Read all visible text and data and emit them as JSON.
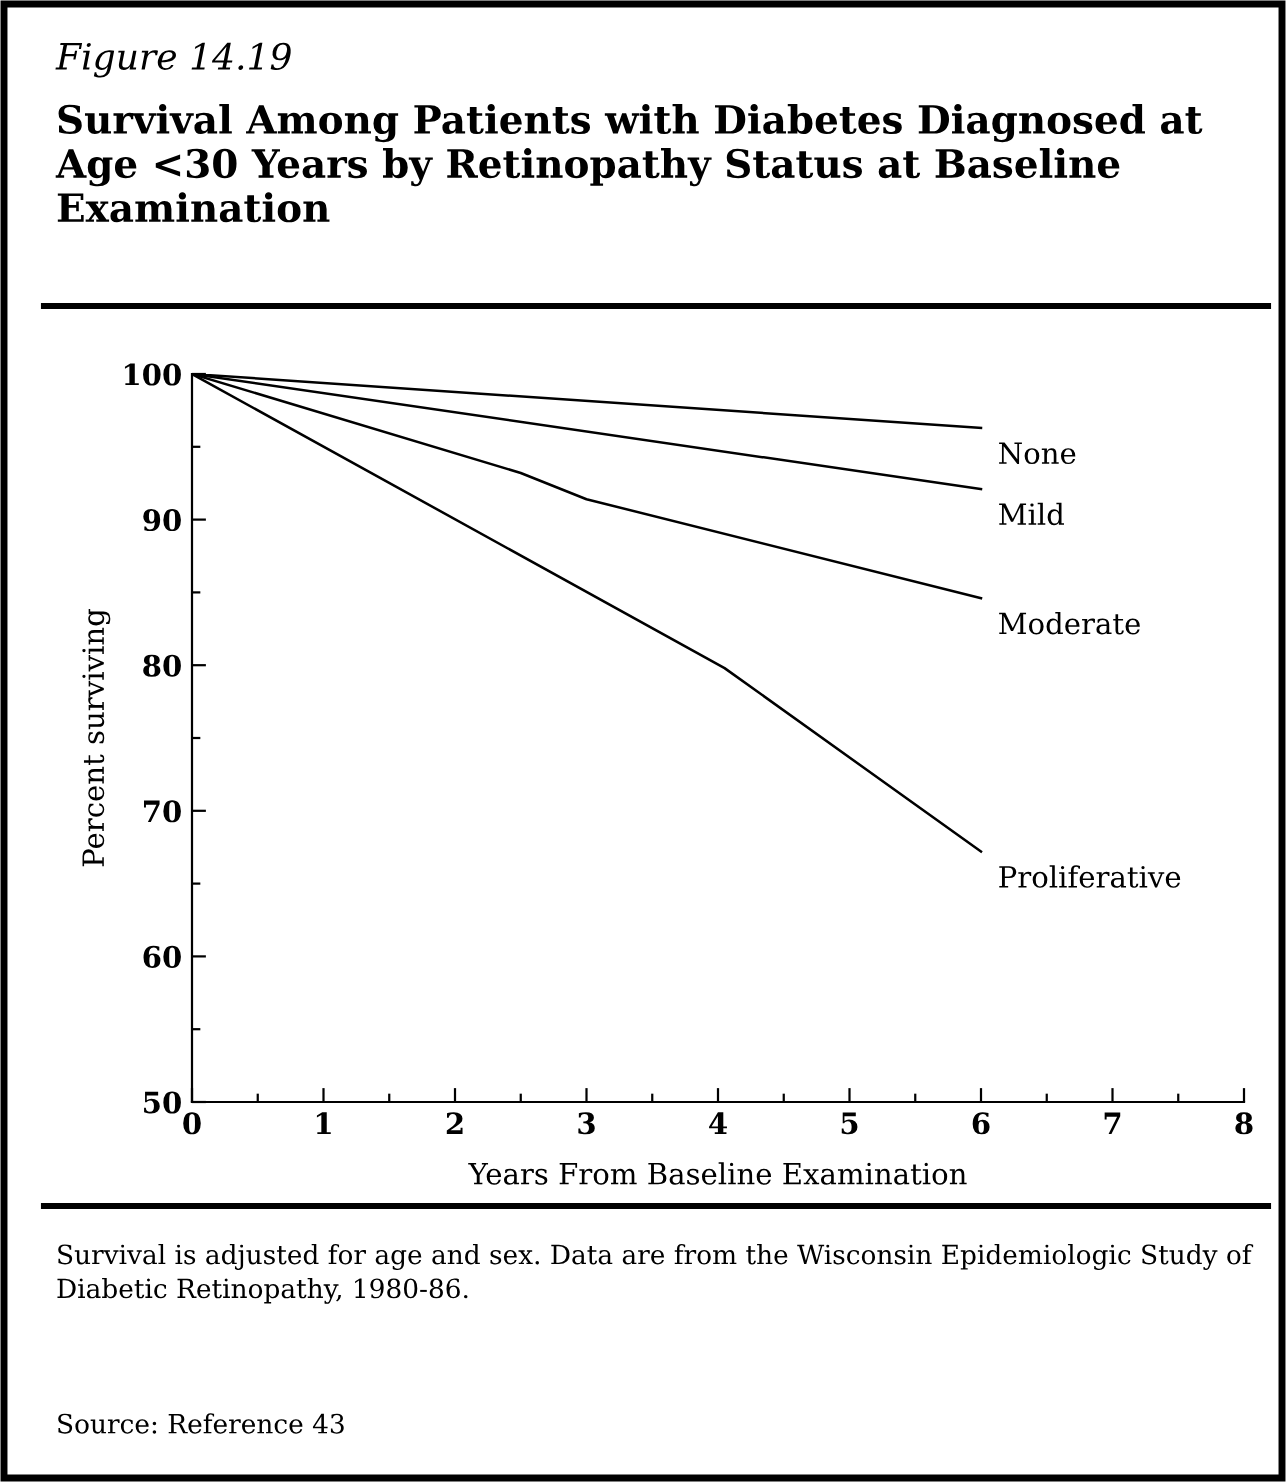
{
  "chart_data": {
    "type": "line",
    "title": "Survival Among Patients with Diabetes Diagnosed at Age <30 Years by Retinopathy Status at Baseline Examination",
    "subtitle": "Figure 14.19",
    "xlabel": "Years From Baseline Examination",
    "ylabel": "Percent surviving",
    "series": [
      {
        "name": "None",
        "color": "#000000",
        "x": [
          0,
          6
        ],
        "values": [
          100,
          96.3
        ]
      },
      {
        "name": "Mild",
        "color": "#000000",
        "x": [
          0,
          6
        ],
        "values": [
          100,
          92.1
        ]
      },
      {
        "name": "Moderate",
        "color": "#000000",
        "x": [
          0,
          2.5,
          3,
          6
        ],
        "values": [
          100,
          93.2,
          91.4,
          84.6
        ]
      },
      {
        "name": "Proliferative",
        "color": "#000000",
        "x": [
          0,
          4.05,
          6
        ],
        "values": [
          100,
          79.8,
          67.2
        ]
      }
    ],
    "xlim": [
      0,
      8
    ],
    "ylim": [
      50,
      100
    ],
    "xticks": [
      0,
      {
        "value": 0.5,
        "label": null
      },
      1,
      {
        "value": 1.5,
        "label": null
      },
      2,
      {
        "value": 2.5,
        "label": null
      },
      3,
      {
        "value": 3.5,
        "label": null
      },
      4,
      {
        "value": 4.5,
        "label": null
      },
      5,
      {
        "value": 5.5,
        "label": null
      },
      6,
      {
        "value": 6.5,
        "label": null
      },
      7,
      {
        "value": 7.5,
        "label": null
      },
      8
    ],
    "yticks": [
      50,
      {
        "value": 55,
        "label": null
      },
      60,
      {
        "value": 65,
        "label": null
      },
      70,
      {
        "value": 75,
        "label": null
      },
      80,
      {
        "value": 85,
        "label": null
      },
      90,
      {
        "value": 95,
        "label": null
      },
      100
    ],
    "grid": false,
    "legend": false,
    "marker": "none",
    "line_style": "solid",
    "annotations": [
      "Survival is adjusted for age and sex. Data are from the Wisconsin Epidemiologic Study of Diabetic Retinopathy, 1980-86.",
      "Source: Reference 43"
    ]
  }
}
